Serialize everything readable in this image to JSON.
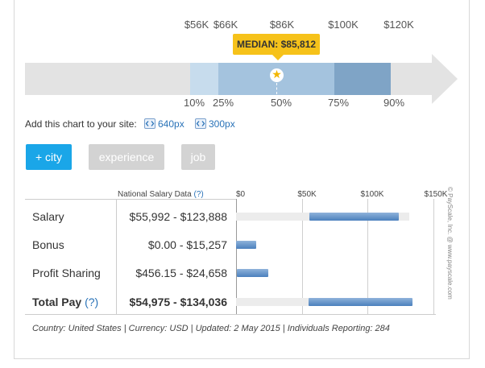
{
  "percentile_chart": {
    "values": [
      {
        "label": "$56K",
        "key": "p10"
      },
      {
        "label": "$66K",
        "key": "p25"
      },
      {
        "label": "$86K",
        "key": "p50"
      },
      {
        "label": "$100K",
        "key": "p75"
      },
      {
        "label": "$120K",
        "key": "p90"
      }
    ],
    "percentiles": [
      "10%",
      "25%",
      "50%",
      "75%",
      "90%"
    ],
    "median_label": "MEDIAN: $85,812",
    "band_colors": {
      "outer": "#c7dced",
      "mid": "#a4c3de",
      "inner": "#7fa4c6",
      "track": "#e3e3e3"
    }
  },
  "add_chart": {
    "label": "Add this chart to your site:",
    "links": [
      "640px",
      "300px"
    ]
  },
  "filters": {
    "city": "+ city",
    "experience": "experience",
    "job": "job",
    "active_color": "#1aa6e8",
    "inactive_color": "#d3d3d3"
  },
  "table": {
    "header": "National Salary Data",
    "help": "(?)",
    "axis": [
      "$0",
      "$50K",
      "$100K",
      "$150K"
    ],
    "axis_max": 150000,
    "rows": [
      {
        "label": "Salary",
        "range": "$55,992 - $123,888",
        "min": 55992,
        "max": 123888,
        "bold": false
      },
      {
        "label": "Bonus",
        "range": "$0.00 - $15,257",
        "min": 0,
        "max": 15257,
        "bold": false
      },
      {
        "label": "Profit Sharing",
        "range": "$456.15 - $24,658",
        "min": 456.15,
        "max": 24658,
        "bold": false
      },
      {
        "label": "Total Pay",
        "help": "(?)",
        "range": "$54,975 - $134,036",
        "min": 54975,
        "max": 134036,
        "bold": true
      }
    ]
  },
  "footnote": "Country: United States | Currency: USD | Updated: 2 May 2015 | Individuals Reporting: 284",
  "credit": "© PayScale, Inc. @ www.payscale.com"
}
